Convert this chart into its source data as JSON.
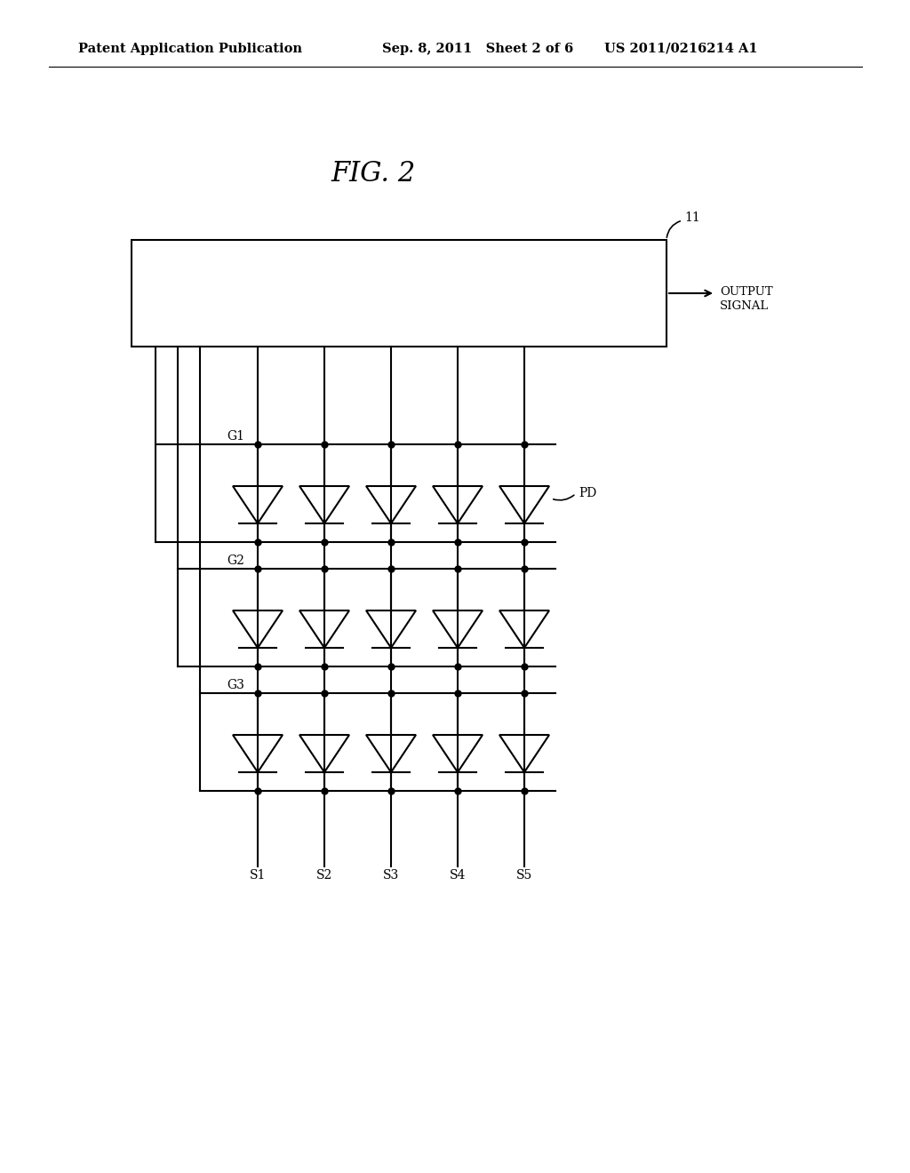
{
  "background_color": "#ffffff",
  "header_left": "Patent Application Publication",
  "header_mid": "Sep. 8, 2011   Sheet 2 of 6",
  "header_right": "US 2011/0216214 A1",
  "fig_label": "FIG. 2",
  "box_label": "11",
  "output_signal_label": "OUTPUT\nSIGNAL",
  "pd_label": "PD",
  "gate_labels": [
    "G1",
    "G2",
    "G3"
  ],
  "source_labels": [
    "S1",
    "S2",
    "S3",
    "S4",
    "S5"
  ],
  "num_rows": 3,
  "num_cols": 5,
  "line_color": "#000000",
  "line_width": 1.5,
  "font_size_header": 10.5,
  "font_size_fig": 22,
  "font_size_label": 10
}
